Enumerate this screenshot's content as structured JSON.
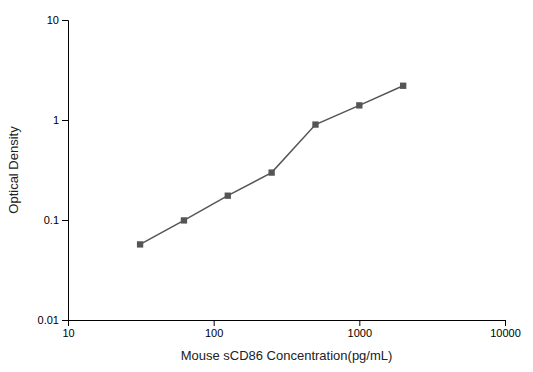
{
  "chart_data": {
    "type": "line",
    "xlabel": "Mouse sCD86 Concentration(pg/mL)",
    "ylabel": "Optical Density",
    "x": [
      31.25,
      62.5,
      125,
      250,
      500,
      1000,
      2000
    ],
    "values": [
      0.057,
      0.099,
      0.175,
      0.298,
      0.9,
      1.4,
      2.2
    ],
    "xlim": [
      10,
      10000
    ],
    "ylim": [
      0.01,
      10
    ],
    "xticks": [
      10,
      100,
      1000,
      10000
    ],
    "yticks": [
      0.01,
      0.1,
      1,
      10
    ],
    "log": true,
    "grid": false,
    "color": "#555555",
    "marker": "square"
  }
}
